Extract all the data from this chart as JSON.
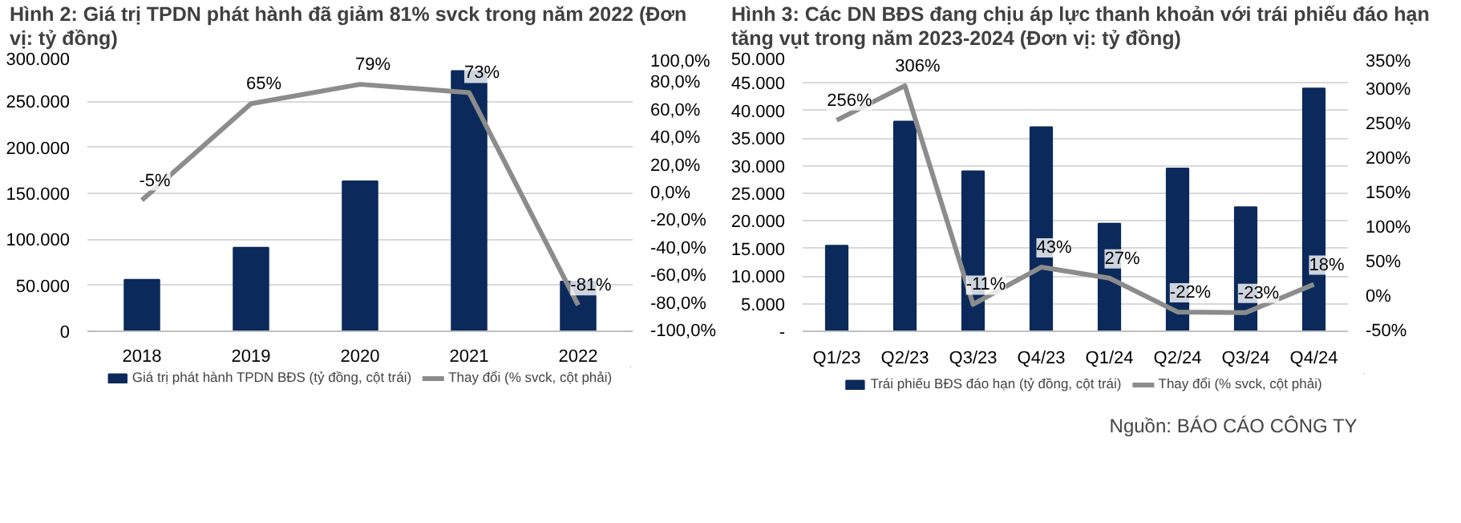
{
  "chart_data": [
    {
      "type": "bar",
      "title": "Hình 2: Giá trị TPDN phát hành đã giảm 81% svck trong năm 2022 (Đơn vị: tỷ đồng)",
      "categories": [
        "2018",
        "2019",
        "2020",
        "2021",
        "2022"
      ],
      "series": [
        {
          "name": "Giá trị phát hành TPDN BĐS (tỷ đồng, cột trái)",
          "color": "#0b2a5b",
          "values": [
            56000,
            91000,
            163000,
            283000,
            54000
          ]
        },
        {
          "name": "Thay đổi (% svck, cột phải)",
          "type": "line",
          "axis": "y2",
          "color": "#8c8c8c",
          "values": [
            -5,
            65,
            79,
            73,
            -81
          ],
          "value_labels": [
            "-5%",
            "65%",
            "79%",
            "73%",
            "-81%"
          ]
        }
      ],
      "ylim": [
        0,
        300000
      ],
      "yticks": [
        {
          "value": 0,
          "label": "0"
        },
        {
          "value": 50000,
          "label": "50.000"
        },
        {
          "value": 100000,
          "label": "100.000"
        },
        {
          "value": 150000,
          "label": "150.000"
        },
        {
          "value": 200000,
          "label": "200.000"
        },
        {
          "value": 250000,
          "label": "250.000"
        },
        {
          "value": 300000,
          "label": "300.000"
        }
      ],
      "y2lim": [
        -100,
        100
      ],
      "y2ticks": [
        {
          "value": -100,
          "label": "-100,0%"
        },
        {
          "value": -80,
          "label": "-80,0%"
        },
        {
          "value": -60,
          "label": "-60,0%"
        },
        {
          "value": -40,
          "label": "-40,0%"
        },
        {
          "value": -20,
          "label": "-20,0%"
        },
        {
          "value": 0,
          "label": "0,0%"
        },
        {
          "value": 20,
          "label": "20,0%"
        },
        {
          "value": 40,
          "label": "40,0%"
        },
        {
          "value": 60,
          "label": "60,0%"
        },
        {
          "value": 80,
          "label": "80,0%"
        },
        {
          "value": 100,
          "label": "100,0%"
        }
      ],
      "grid": "y",
      "legend": "bottom"
    },
    {
      "type": "bar",
      "title": "Hình 3: Các DN BĐS đang chịu áp lực thanh khoản với trái phiếu đáo hạn tăng vụt trong năm 2023-2024 (Đơn vị: tỷ đồng)",
      "categories": [
        "Q1/23",
        "Q2/23",
        "Q3/23",
        "Q4/23",
        "Q1/24",
        "Q2/24",
        "Q3/24",
        "Q4/24"
      ],
      "series": [
        {
          "name": "Trái phiếu BĐS đáo hạn (tỷ đồng, cột trái)",
          "color": "#0b2a5b",
          "values": [
            15500,
            38000,
            29000,
            37000,
            19500,
            29500,
            22500,
            44000
          ]
        },
        {
          "name": "Thay đổi (% svck, cột phải)",
          "type": "line",
          "axis": "y2",
          "color": "#8c8c8c",
          "values": [
            256,
            306,
            -11,
            43,
            27,
            -22,
            -23,
            18
          ],
          "value_labels": [
            "256%",
            "306%",
            "-11%",
            "43%",
            "27%",
            "-22%",
            "-23%",
            "18%"
          ]
        }
      ],
      "ylim": [
        0,
        50000
      ],
      "yticks": [
        {
          "value": 0,
          "label": "-"
        },
        {
          "value": 5000,
          "label": "5.000"
        },
        {
          "value": 10000,
          "label": "10.000"
        },
        {
          "value": 15000,
          "label": "15.000"
        },
        {
          "value": 20000,
          "label": "20.000"
        },
        {
          "value": 25000,
          "label": "25.000"
        },
        {
          "value": 30000,
          "label": "30.000"
        },
        {
          "value": 35000,
          "label": "35.000"
        },
        {
          "value": 40000,
          "label": "40.000"
        },
        {
          "value": 45000,
          "label": "45.000"
        },
        {
          "value": 50000,
          "label": "50.000"
        }
      ],
      "y2lim": [
        -50,
        350
      ],
      "y2ticks": [
        {
          "value": -50,
          "label": "-50%"
        },
        {
          "value": 0,
          "label": "0%"
        },
        {
          "value": 50,
          "label": "50%"
        },
        {
          "value": 100,
          "label": "100%"
        },
        {
          "value": 150,
          "label": "150%"
        },
        {
          "value": 200,
          "label": "200%"
        },
        {
          "value": 250,
          "label": "250%"
        },
        {
          "value": 300,
          "label": "300%"
        },
        {
          "value": 350,
          "label": "350%"
        }
      ],
      "grid": "y",
      "legend": "bottom",
      "annotations": [
        "Nguồn: BÁO CÁO CÔNG TY"
      ]
    }
  ]
}
